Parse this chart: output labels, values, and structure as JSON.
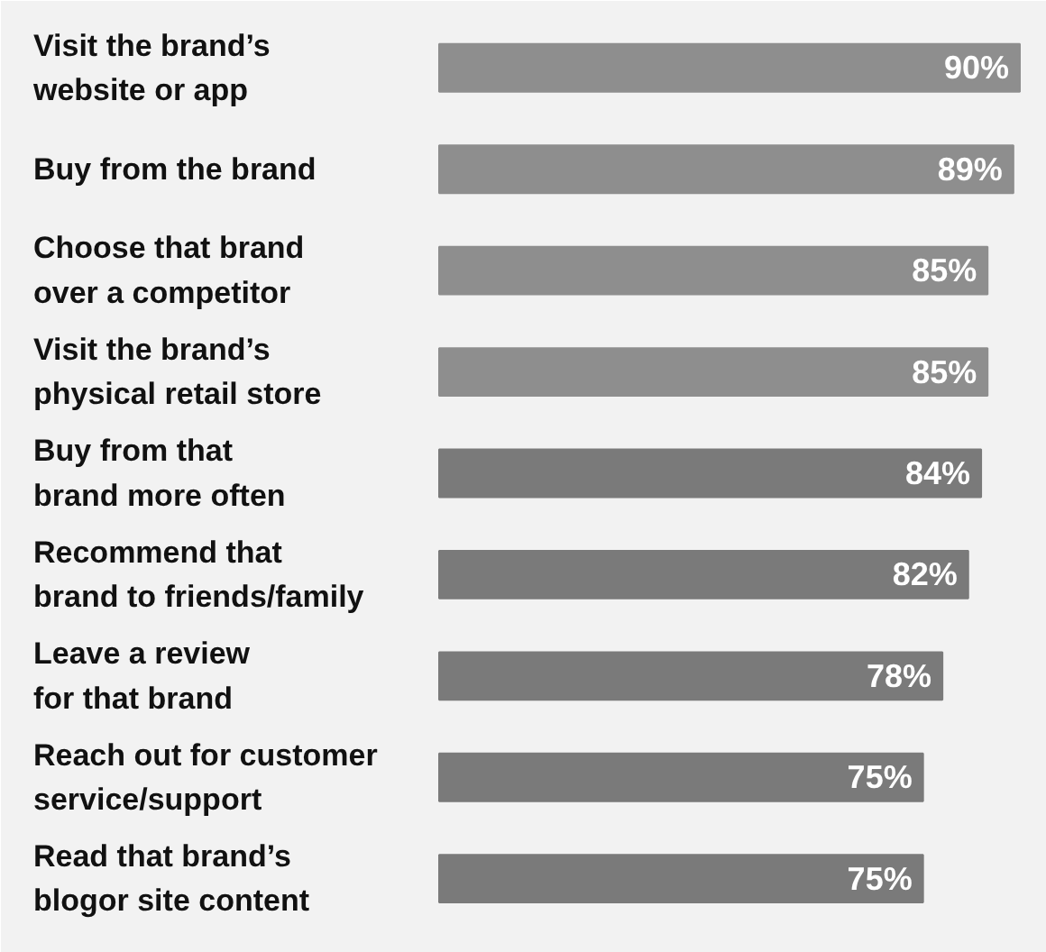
{
  "chart_data": {
    "type": "bar",
    "orientation": "horizontal",
    "categories": [
      "Visit the brand’s\nwebsite or app",
      "Buy from the brand",
      "Choose that brand\nover a competitor",
      "Visit the brand’s\nphysical retail store",
      "Buy from that\nbrand more often",
      "Recommend that\nbrand to friends/family",
      "Leave a review\nfor that brand",
      "Reach out for customer\nservice/support",
      "Read that brand’s\nblogor site content"
    ],
    "values": [
      90,
      89,
      85,
      85,
      84,
      82,
      78,
      75,
      75
    ],
    "value_labels": [
      "90%",
      "89%",
      "85%",
      "85%",
      "84%",
      "82%",
      "78%",
      "75%",
      "75%"
    ],
    "colors": [
      "#8e8e8e",
      "#8e8e8e",
      "#8e8e8e",
      "#8e8e8e",
      "#7a7a7a",
      "#7a7a7a",
      "#7a7a7a",
      "#7a7a7a",
      "#7a7a7a"
    ]
  }
}
